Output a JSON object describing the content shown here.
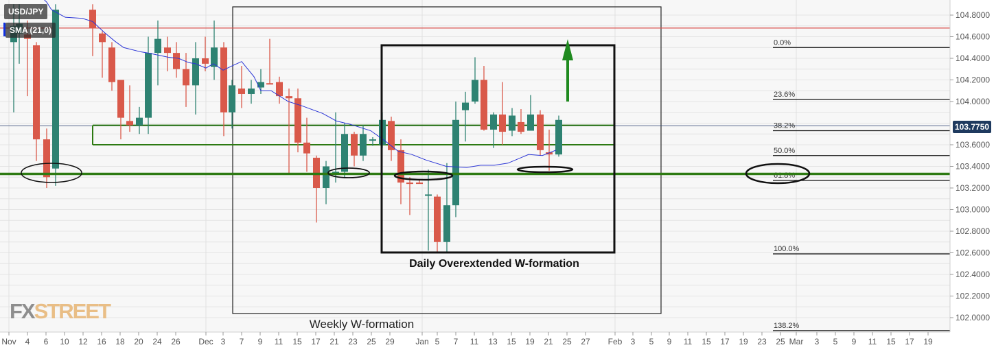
{
  "header": {
    "symbol": "USD/JPY",
    "indicator": "SMA (21,0)"
  },
  "current_price": "103.7750",
  "watermark": {
    "fx": "FX",
    "street": "STREET"
  },
  "annotations": {
    "weekly_label": "Weekly W-formation",
    "daily_label": "Daily Overextended W-formation"
  },
  "colors": {
    "bull": "#2e8272",
    "bear": "#d9594a",
    "sma": "#2b35d6",
    "resistance": "#d9534f",
    "support": "#2d7a12",
    "arrow": "#1f8a1f",
    "price_tag": "#1f3a5f",
    "background": "#f7f7f7",
    "grid": "#e4e4e4"
  },
  "chart_data": {
    "type": "candlestick",
    "title": "USD/JPY",
    "xlabel": "",
    "ylabel": "",
    "ylim": [
      101.9,
      104.9
    ],
    "grid": true,
    "y_ticks": [
      "104.8000",
      "104.6000",
      "104.4000",
      "104.2000",
      "104.0000",
      "103.6000",
      "103.4000",
      "103.2000",
      "103.0000",
      "102.8000",
      "102.6000",
      "102.4000",
      "102.2000",
      "102.0000"
    ],
    "x_ticks": [
      "Nov",
      "4",
      "6",
      "10",
      "12",
      "16",
      "18",
      "20",
      "24",
      "26",
      "Dec",
      "3",
      "7",
      "9",
      "11",
      "15",
      "17",
      "21",
      "23",
      "25",
      "29",
      "Jan",
      "5",
      "7",
      "11",
      "13",
      "15",
      "19",
      "21",
      "25",
      "27",
      "Feb",
      "3",
      "5",
      "9",
      "11",
      "15",
      "17",
      "19",
      "23",
      "25",
      "Mar",
      "3",
      "5",
      "9",
      "11",
      "15",
      "17",
      "19"
    ],
    "indicators": [
      {
        "name": "SMA (21,0)",
        "color": "#2b35d6"
      }
    ],
    "fibonacci": [
      {
        "label": "0.0%",
        "price": 104.5
      },
      {
        "label": "23.6%",
        "price": 104.02
      },
      {
        "label": "38.2%",
        "price": 103.73
      },
      {
        "label": "50.0%",
        "price": 103.5
      },
      {
        "label": "61.8%",
        "price": 103.27
      },
      {
        "label": "100.0%",
        "price": 102.59
      },
      {
        "label": "138.2%",
        "price": 101.88
      }
    ],
    "horizontal_lines": [
      {
        "name": "resistance",
        "price": 104.68,
        "color": "#d9534f"
      },
      {
        "name": "support",
        "price": 103.33,
        "color": "#2d7a12"
      },
      {
        "name": "current",
        "price": 103.775,
        "color": "#1f3a5f"
      }
    ],
    "zone": {
      "top": 103.78,
      "bottom": 103.6
    },
    "candles": [
      {
        "x": 20,
        "o": 104.55,
        "h": 104.9,
        "l": 103.9,
        "c": 104.7
      },
      {
        "x": 28,
        "o": 104.63,
        "h": 104.9,
        "l": 104.35,
        "c": 104.72
      },
      {
        "x": 40,
        "o": 104.62,
        "h": 104.75,
        "l": 104.05,
        "c": 104.58
      },
      {
        "x": 53,
        "o": 104.52,
        "h": 104.55,
        "l": 103.45,
        "c": 103.65
      },
      {
        "x": 68,
        "o": 103.65,
        "h": 103.75,
        "l": 103.2,
        "c": 103.3
      },
      {
        "x": 81,
        "o": 103.38,
        "h": 104.9,
        "l": 103.22,
        "c": 104.85
      },
      {
        "x": 135,
        "o": 104.85,
        "h": 104.9,
        "l": 104.42,
        "c": 104.68
      },
      {
        "x": 149,
        "o": 104.63,
        "h": 104.65,
        "l": 104.22,
        "c": 104.55
      },
      {
        "x": 163,
        "o": 104.5,
        "h": 104.55,
        "l": 104.1,
        "c": 104.18
      },
      {
        "x": 176,
        "o": 104.2,
        "h": 104.2,
        "l": 103.65,
        "c": 103.85
      },
      {
        "x": 189,
        "o": 103.82,
        "h": 104.15,
        "l": 103.72,
        "c": 103.78
      },
      {
        "x": 203,
        "o": 103.78,
        "h": 103.95,
        "l": 103.7,
        "c": 103.85
      },
      {
        "x": 216,
        "o": 103.85,
        "h": 104.6,
        "l": 103.7,
        "c": 104.45
      },
      {
        "x": 230,
        "o": 104.45,
        "h": 104.75,
        "l": 104.15,
        "c": 104.58
      },
      {
        "x": 244,
        "o": 104.5,
        "h": 104.6,
        "l": 104.28,
        "c": 104.45
      },
      {
        "x": 257,
        "o": 104.45,
        "h": 104.55,
        "l": 104.22,
        "c": 104.3
      },
      {
        "x": 271,
        "o": 104.3,
        "h": 104.45,
        "l": 103.95,
        "c": 104.15
      },
      {
        "x": 285,
        "o": 104.15,
        "h": 104.55,
        "l": 103.88,
        "c": 104.4
      },
      {
        "x": 299,
        "o": 104.4,
        "h": 104.6,
        "l": 104.28,
        "c": 104.35
      },
      {
        "x": 312,
        "o": 104.32,
        "h": 104.75,
        "l": 104.2,
        "c": 104.5
      },
      {
        "x": 326,
        "o": 104.5,
        "h": 104.55,
        "l": 103.68,
        "c": 103.9
      },
      {
        "x": 338,
        "o": 103.9,
        "h": 104.2,
        "l": 103.75,
        "c": 104.15
      },
      {
        "x": 352,
        "o": 104.12,
        "h": 104.33,
        "l": 103.94,
        "c": 104.07
      },
      {
        "x": 366,
        "o": 104.07,
        "h": 104.2,
        "l": 103.98,
        "c": 104.12
      },
      {
        "x": 380,
        "o": 104.13,
        "h": 104.3,
        "l": 104.07,
        "c": 104.18
      },
      {
        "x": 393,
        "o": 104.17,
        "h": 104.58,
        "l": 104.16,
        "c": 104.16
      },
      {
        "x": 407,
        "o": 104.18,
        "h": 104.23,
        "l": 103.98,
        "c": 104.05
      },
      {
        "x": 421,
        "o": 104.05,
        "h": 104.12,
        "l": 103.33,
        "c": 104.03
      },
      {
        "x": 434,
        "o": 104.03,
        "h": 104.12,
        "l": 103.53,
        "c": 103.62
      },
      {
        "x": 447,
        "o": 103.62,
        "h": 103.85,
        "l": 103.35,
        "c": 103.52
      },
      {
        "x": 461,
        "o": 103.48,
        "h": 103.5,
        "l": 102.88,
        "c": 103.2
      },
      {
        "x": 475,
        "o": 103.2,
        "h": 103.45,
        "l": 103.05,
        "c": 103.4
      },
      {
        "x": 489,
        "o": 103.35,
        "h": 103.9,
        "l": 103.25,
        "c": 103.35
      },
      {
        "x": 502,
        "o": 103.35,
        "h": 103.8,
        "l": 103.3,
        "c": 103.7
      },
      {
        "x": 516,
        "o": 103.7,
        "h": 103.72,
        "l": 103.4,
        "c": 103.5
      },
      {
        "x": 529,
        "o": 103.5,
        "h": 103.78,
        "l": 103.45,
        "c": 103.7
      },
      {
        "x": 543,
        "o": 103.65,
        "h": 103.67,
        "l": 103.59,
        "c": 103.65
      },
      {
        "x": 557,
        "o": 103.6,
        "h": 103.9,
        "l": 103.57,
        "c": 103.83
      },
      {
        "x": 570,
        "o": 103.82,
        "h": 103.86,
        "l": 103.45,
        "c": 103.55
      },
      {
        "x": 584,
        "o": 103.55,
        "h": 103.65,
        "l": 103.05,
        "c": 103.25
      },
      {
        "x": 597,
        "o": 103.25,
        "h": 103.3,
        "l": 102.95,
        "c": 103.24
      },
      {
        "x": 611,
        "o": 103.25,
        "h": 103.27,
        "l": 103.24,
        "c": 103.24
      },
      {
        "x": 624,
        "o": 103.13,
        "h": 103.37,
        "l": 102.62,
        "c": 103.14
      },
      {
        "x": 637,
        "o": 103.12,
        "h": 103.14,
        "l": 102.6,
        "c": 102.7
      },
      {
        "x": 651,
        "o": 102.7,
        "h": 103.43,
        "l": 102.6,
        "c": 103.04
      },
      {
        "x": 664,
        "o": 103.04,
        "h": 104.0,
        "l": 102.93,
        "c": 103.83
      },
      {
        "x": 678,
        "o": 103.92,
        "h": 104.09,
        "l": 103.63,
        "c": 103.99
      },
      {
        "x": 692,
        "o": 104.0,
        "h": 104.41,
        "l": 103.98,
        "c": 104.2
      },
      {
        "x": 705,
        "o": 104.2,
        "h": 104.33,
        "l": 103.73,
        "c": 103.74
      },
      {
        "x": 719,
        "o": 103.74,
        "h": 103.9,
        "l": 103.57,
        "c": 103.88
      },
      {
        "x": 732,
        "o": 103.88,
        "h": 104.18,
        "l": 103.6,
        "c": 103.72
      },
      {
        "x": 746,
        "o": 103.73,
        "h": 103.94,
        "l": 103.68,
        "c": 103.87
      },
      {
        "x": 759,
        "o": 103.81,
        "h": 103.93,
        "l": 103.7,
        "c": 103.72
      },
      {
        "x": 773,
        "o": 103.73,
        "h": 104.06,
        "l": 103.74,
        "c": 103.88
      },
      {
        "x": 787,
        "o": 103.88,
        "h": 103.92,
        "l": 103.5,
        "c": 103.55
      },
      {
        "x": 800,
        "o": 103.53,
        "h": 103.74,
        "l": 103.36,
        "c": 103.51
      },
      {
        "x": 814,
        "o": 103.51,
        "h": 103.87,
        "l": 103.49,
        "c": 103.83
      }
    ],
    "sma": [
      [
        60,
        104.97
      ],
      [
        68,
        104.92
      ],
      [
        75,
        104.85
      ],
      [
        95,
        104.78
      ],
      [
        120,
        104.77
      ],
      [
        135,
        104.74
      ],
      [
        152,
        104.64
      ],
      [
        167,
        104.56
      ],
      [
        180,
        104.5
      ],
      [
        205,
        104.46
      ],
      [
        215,
        104.45
      ],
      [
        230,
        104.43
      ],
      [
        245,
        104.41
      ],
      [
        260,
        104.4
      ],
      [
        275,
        104.36
      ],
      [
        285,
        104.35
      ],
      [
        300,
        104.31
      ],
      [
        311,
        104.35
      ],
      [
        325,
        104.29
      ],
      [
        338,
        104.33
      ],
      [
        352,
        104.37
      ],
      [
        370,
        104.23
      ],
      [
        380,
        104.1
      ],
      [
        395,
        104.1
      ],
      [
        420,
        104.0
      ],
      [
        440,
        103.96
      ],
      [
        470,
        103.89
      ],
      [
        490,
        103.82
      ],
      [
        510,
        103.79
      ],
      [
        540,
        103.73
      ],
      [
        560,
        103.64
      ],
      [
        580,
        103.54
      ],
      [
        600,
        103.51
      ],
      [
        620,
        103.46
      ],
      [
        650,
        103.4
      ],
      [
        680,
        103.39
      ],
      [
        700,
        103.41
      ],
      [
        720,
        103.41
      ],
      [
        740,
        103.43
      ],
      [
        770,
        103.51
      ],
      [
        790,
        103.5
      ],
      [
        810,
        103.55
      ]
    ]
  }
}
